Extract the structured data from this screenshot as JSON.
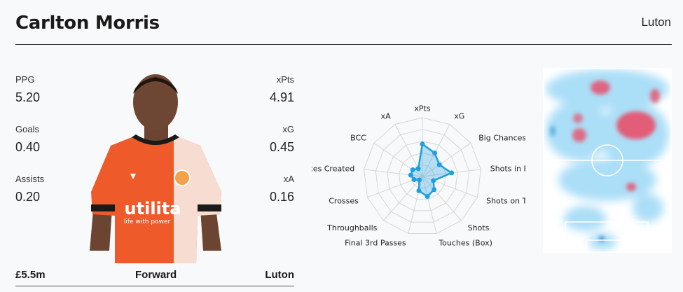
{
  "player": {
    "name": "Carlton Morris",
    "team_header": "Luton"
  },
  "stats_left": [
    {
      "label": "PPG",
      "value": "5.20"
    },
    {
      "label": "Goals",
      "value": "0.40"
    },
    {
      "label": "Assists",
      "value": "0.20"
    }
  ],
  "stats_right": [
    {
      "label": "xPts",
      "value": "4.91"
    },
    {
      "label": "xG",
      "value": "0.45"
    },
    {
      "label": "xA",
      "value": "0.16"
    }
  ],
  "footer": {
    "price": "£5.5m",
    "position": "Forward",
    "team": "Luton"
  },
  "photo": {
    "sponsor": "utilita",
    "sponsor_tagline": "life with power"
  },
  "radar": {
    "axes": [
      "xPts",
      "xG",
      "Big Chances",
      "Shots in Box",
      "Shots on Target",
      "Shots",
      "Touches (Box)",
      "Final 3rd Passes",
      "Throughballs",
      "Crosses",
      "Big Chances Created",
      "BCC",
      "xA"
    ],
    "values": [
      0.55,
      0.45,
      0.35,
      0.5,
      0.2,
      0.3,
      0.35,
      0.25,
      0.08,
      0.15,
      0.2,
      0.2,
      0.15
    ],
    "color": "#1ea0e0"
  },
  "colors": {
    "accent": "#1ea0e0",
    "shirt": "#ef5a2a",
    "heat_hot": "#e8506a"
  }
}
